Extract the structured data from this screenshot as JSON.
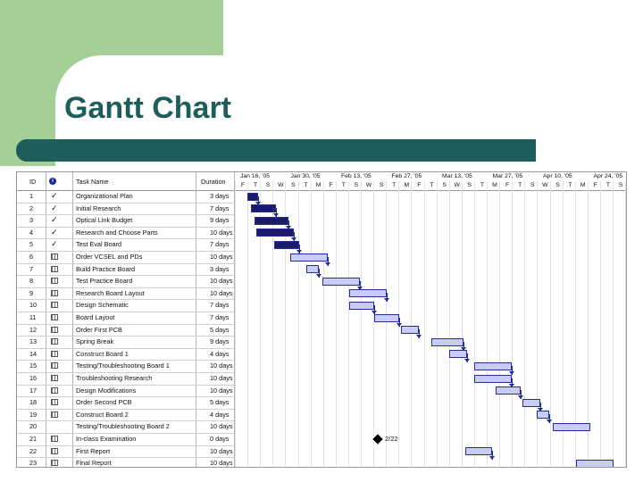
{
  "slide": {
    "title": "Gantt Chart"
  },
  "columns": {
    "id": "ID",
    "info": "i",
    "name": "Task Name",
    "duration": "Duration"
  },
  "weeks": [
    "Jan 16, '05",
    "Jan 30, '05",
    "Feb 13, '05",
    "Feb 27, '05",
    "Mar 13, '05",
    "Mar 27, '05",
    "Apr 10, '05",
    "Apr 24, '05"
  ],
  "days": [
    "F",
    "T",
    "S",
    "W",
    "S",
    "T",
    "M",
    "F",
    "T",
    "S",
    "W",
    "S",
    "T",
    "M",
    "F",
    "T",
    "S",
    "W",
    "S",
    "T",
    "M",
    "F",
    "T",
    "S",
    "W",
    "S",
    "T",
    "M",
    "F",
    "T",
    "S",
    "W",
    "S",
    "T"
  ],
  "tasks": [
    {
      "id": "1",
      "name": "Organizational Plan",
      "duration": "3 days",
      "indicator": "check"
    },
    {
      "id": "2",
      "name": "Initial Research",
      "duration": "7 days",
      "indicator": "check"
    },
    {
      "id": "3",
      "name": "Optical Link Budget",
      "duration": "9 days",
      "indicator": "check"
    },
    {
      "id": "4",
      "name": "Research and Choose Parts",
      "duration": "10 days",
      "indicator": "check"
    },
    {
      "id": "5",
      "name": "Test Eval Board",
      "duration": "7 days",
      "indicator": "check"
    },
    {
      "id": "6",
      "name": "Order VCSEL and PDs",
      "duration": "10 days",
      "indicator": "grid"
    },
    {
      "id": "7",
      "name": "Build Practice Board",
      "duration": "3 days",
      "indicator": "grid"
    },
    {
      "id": "8",
      "name": "Test Practice Board",
      "duration": "10 days",
      "indicator": "grid"
    },
    {
      "id": "9",
      "name": "Research Board Layout",
      "duration": "10 days",
      "indicator": "grid"
    },
    {
      "id": "10",
      "name": "Design Schematic",
      "duration": "7 days",
      "indicator": "grid"
    },
    {
      "id": "11",
      "name": "Board Layout",
      "duration": "7 days",
      "indicator": "grid"
    },
    {
      "id": "12",
      "name": "Order First PCB",
      "duration": "5 days",
      "indicator": "grid"
    },
    {
      "id": "13",
      "name": "Spring Break",
      "duration": "9 days",
      "indicator": "grid"
    },
    {
      "id": "14",
      "name": "Construct Board 1",
      "duration": "4 days",
      "indicator": "grid"
    },
    {
      "id": "15",
      "name": "Testing/Troubleshooting Board 1",
      "duration": "10 days",
      "indicator": "grid"
    },
    {
      "id": "16",
      "name": "Troubleshooting Research",
      "duration": "10 days",
      "indicator": "grid"
    },
    {
      "id": "17",
      "name": "Design Modifications",
      "duration": "10 days",
      "indicator": "grid"
    },
    {
      "id": "18",
      "name": "Order Second PCB",
      "duration": "5 days",
      "indicator": "grid"
    },
    {
      "id": "19",
      "name": "Construct Board 2",
      "duration": "4 days",
      "indicator": "grid"
    },
    {
      "id": "20",
      "name": "Testing/Troubleshooting Board 2",
      "duration": "10 days",
      "indicator": "none"
    },
    {
      "id": "21",
      "name": "In-class Examination",
      "duration": "0 days",
      "indicator": "grid"
    },
    {
      "id": "22",
      "name": "First Report",
      "duration": "10 days",
      "indicator": "grid"
    },
    {
      "id": "23",
      "name": "Final Report",
      "duration": "10 days",
      "indicator": "grid"
    }
  ],
  "milestone_label": "2/22",
  "colors": {
    "title": "#1d5e5b",
    "green": "#a4cf97",
    "bar_fill": "#c8cdf5",
    "bar_border": "#2a2c9a",
    "done": "#1a1a6a"
  }
}
